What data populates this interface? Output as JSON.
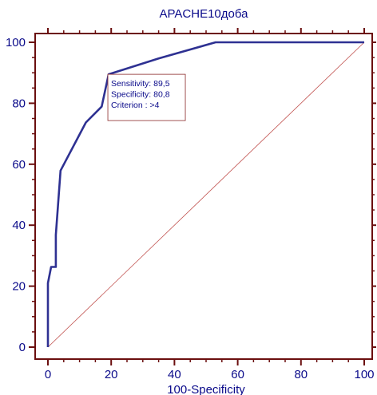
{
  "chart_data": {
    "type": "line",
    "title": "APACHE10доба",
    "xlabel": "100-Specificity",
    "ylabel": "",
    "xlim": [
      0,
      100
    ],
    "ylim": [
      0,
      100
    ],
    "x_ticks": [
      "0",
      "20",
      "40",
      "60",
      "80",
      "100"
    ],
    "y_ticks": [
      "0",
      "20",
      "40",
      "60",
      "80",
      "100"
    ],
    "grid": false,
    "series": [
      {
        "values": [
          [
            0,
            0
          ],
          [
            0,
            21
          ],
          [
            1,
            26.3
          ],
          [
            2.5,
            26.3
          ],
          [
            2.5,
            36.8
          ],
          [
            4,
            57.9
          ],
          [
            12,
            73.7
          ],
          [
            17,
            78.9
          ],
          [
            19.2,
            89.5
          ],
          [
            35,
            94.7
          ],
          [
            53,
            100
          ],
          [
            100,
            100
          ]
        ],
        "color": "#2e3192"
      }
    ],
    "reference_line": {
      "from": [
        0,
        0
      ],
      "to": [
        100,
        100
      ],
      "color": "#c0504d"
    },
    "annotation": {
      "lines": [
        "Sensitivity: 89,5",
        "Specificity: 80,8",
        "Criterion : >4"
      ],
      "point": [
        19.2,
        89.5
      ]
    },
    "colors": {
      "axis": "#6b0f0f",
      "text": "#0a0a8a"
    }
  }
}
